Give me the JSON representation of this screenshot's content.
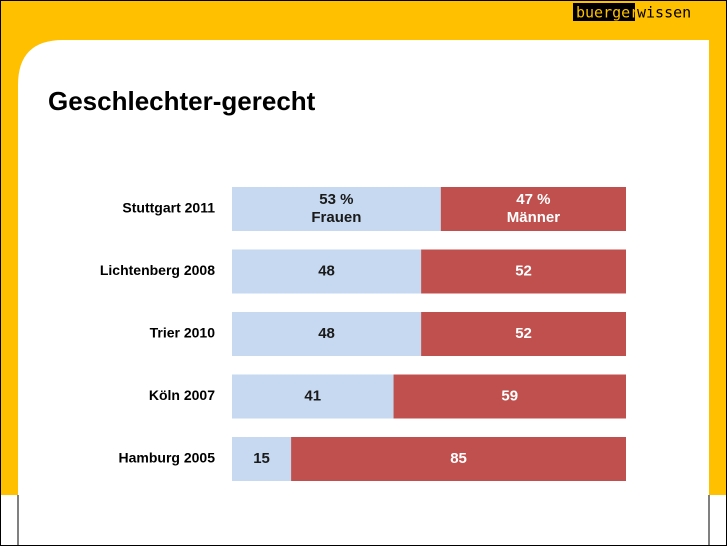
{
  "logo": {
    "highlight": "buerger",
    "rest": "wissen"
  },
  "chart_data": {
    "type": "stacked_bar_horizontal",
    "title": "Geschlechter-gerecht",
    "categories": [
      "Stuttgart 2011",
      "Lichtenberg 2008",
      "Trier 2010",
      "Köln 2007",
      "Hamburg 2005"
    ],
    "xlim": [
      0,
      100
    ],
    "series": [
      {
        "name": "Frauen",
        "color": "#c6d9f1",
        "values": [
          53,
          48,
          48,
          41,
          15
        ],
        "value_labels": [
          "53 %",
          "48",
          "48",
          "41",
          "15"
        ]
      },
      {
        "name": "Männer",
        "color": "#c0504d",
        "values": [
          47,
          52,
          52,
          59,
          85
        ],
        "value_labels": [
          "47 %",
          "52",
          "52",
          "59",
          "85"
        ]
      }
    ]
  }
}
